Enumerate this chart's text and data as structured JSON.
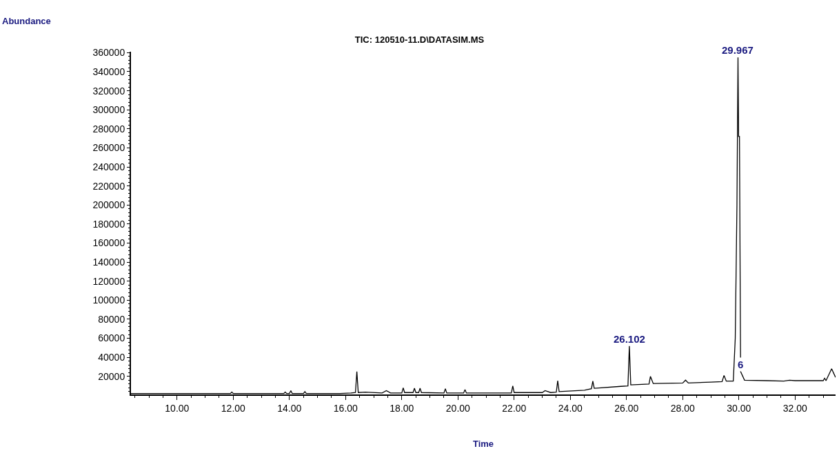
{
  "chart_data": {
    "type": "line",
    "title": "TIC: 120510-11.D\\DATASIM.MS",
    "xlabel": "Time",
    "series": [
      {
        "color": "#000000",
        "x": [
          8.36,
          11.9,
          11.95,
          12.0,
          13.8,
          13.85,
          13.9,
          14.0,
          14.05,
          14.1,
          14.5,
          14.55,
          14.6,
          15.8,
          16.2,
          16.35,
          16.4,
          16.45,
          16.7,
          17.3,
          17.45,
          17.6,
          18.0,
          18.05,
          18.1,
          18.4,
          18.45,
          18.5,
          18.6,
          18.65,
          18.7,
          19.5,
          19.55,
          19.6,
          20.2,
          20.25,
          20.3,
          21.9,
          21.95,
          22.0,
          23.0,
          23.1,
          23.3,
          23.5,
          23.55,
          23.6,
          24.5,
          24.75,
          24.8,
          24.85,
          25.8,
          26.05,
          26.1,
          26.15,
          26.8,
          26.85,
          26.95,
          28.0,
          28.1,
          28.2,
          29.0,
          29.4,
          29.47,
          29.55,
          29.8,
          29.87,
          29.93,
          29.967,
          29.99,
          30.02,
          30.06,
          30.2,
          31.0,
          31.6,
          31.8,
          32.0,
          33.0,
          33.05,
          33.1,
          33.3,
          33.44
        ],
        "values": [
          2000,
          2000,
          3500,
          2000,
          2000,
          3500,
          2000,
          2000,
          5000,
          2000,
          2000,
          4000,
          2000,
          2000,
          2500,
          3000,
          25000,
          3000,
          3500,
          2500,
          5000,
          2500,
          2500,
          8000,
          3000,
          3000,
          7500,
          3000,
          3000,
          7500,
          3000,
          2500,
          7000,
          2500,
          2500,
          6000,
          2500,
          2500,
          10000,
          3000,
          3000,
          5000,
          3000,
          3500,
          15500,
          4000,
          5500,
          7000,
          15000,
          7500,
          9500,
          10000,
          52000,
          11000,
          12000,
          20000,
          12500,
          13000,
          16000,
          13000,
          14000,
          14500,
          21000,
          15000,
          15000,
          60000,
          200000,
          355000,
          272000,
          272000,
          25000,
          16000,
          15500,
          15000,
          16000,
          15500,
          15500,
          18000,
          15500,
          28000,
          19000
        ]
      }
    ],
    "xlim": [
      8.36,
      33.44
    ],
    "xticks": [
      {
        "value": 10,
        "label": "10.00"
      },
      {
        "value": 12,
        "label": "12.00"
      },
      {
        "value": 14,
        "label": "14.00"
      },
      {
        "value": 16,
        "label": "16.00"
      },
      {
        "value": 18,
        "label": "18.00"
      },
      {
        "value": 20,
        "label": "20.00"
      },
      {
        "value": 22,
        "label": "22.00"
      },
      {
        "value": 24,
        "label": "24.00"
      },
      {
        "value": 26,
        "label": "26.00"
      },
      {
        "value": 28,
        "label": "28.00"
      },
      {
        "value": 30,
        "label": "30.00"
      },
      {
        "value": 32,
        "label": "32.00"
      }
    ],
    "ylim": [
      1000,
      361000
    ],
    "yticks": [
      20000,
      40000,
      60000,
      80000,
      100000,
      120000,
      140000,
      160000,
      180000,
      200000,
      220000,
      240000,
      260000,
      280000,
      300000,
      320000,
      340000,
      360000
    ],
    "annotations": [
      "Abundance",
      {
        "text": "29.967",
        "x": 29.967,
        "y": 355000
      },
      {
        "text": "26.102",
        "x": 26.102,
        "y": 52000
      },
      {
        "text": "6",
        "x": 30.06,
        "y": 25000
      }
    ],
    "marker": "none",
    "line_style": "solid"
  }
}
